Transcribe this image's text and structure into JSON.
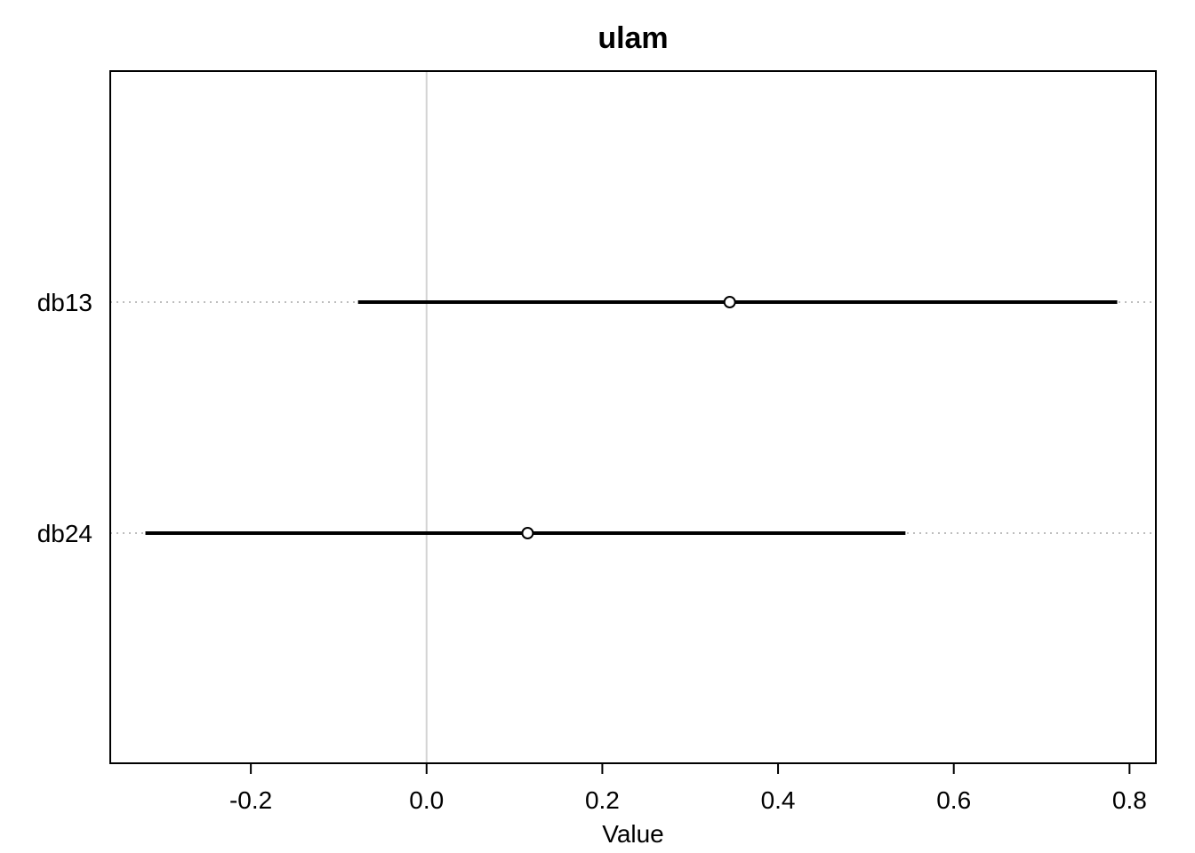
{
  "chart_data": {
    "type": "scatter",
    "title": "ulam",
    "xlabel": "Value",
    "ylabel": "",
    "xlim": [
      -0.36,
      0.83
    ],
    "x_ticks": [
      -0.2,
      0.0,
      0.2,
      0.4,
      0.6,
      0.8
    ],
    "x_tick_labels": [
      "-0.2",
      "0.0",
      "0.2",
      "0.4",
      "0.6",
      "0.8"
    ],
    "zero_line": 0.0,
    "grid": false,
    "categories": [
      "db13",
      "db24"
    ],
    "series": [
      {
        "points": [
          {
            "label": "db13",
            "mean": 0.345,
            "lower": -0.078,
            "upper": 0.786
          },
          {
            "label": "db24",
            "mean": 0.115,
            "lower": -0.32,
            "upper": 0.545
          }
        ]
      }
    ],
    "colors": {
      "interval": "#000000",
      "point": "#000000",
      "zero_line": "#d3d3d3",
      "guide_line": "#bebebe"
    }
  }
}
